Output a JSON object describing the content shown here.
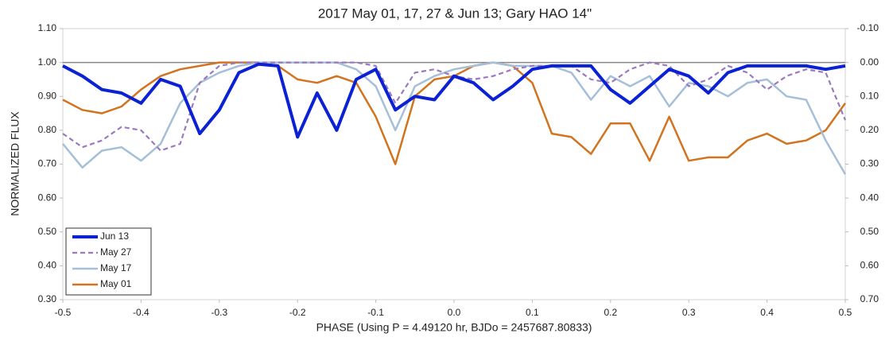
{
  "chart_data": {
    "type": "line",
    "title": "2017 May 01, 17, 27 & Jun 13; Gary HAO 14\"",
    "x_label": "PHASE (Using P = 4.49120 hr, BJDo = 2457687.80833)",
    "y_label": "NORMALIZED FLUX",
    "x": [
      -0.5,
      -0.475,
      -0.45,
      -0.425,
      -0.4,
      -0.375,
      -0.35,
      -0.325,
      -0.3,
      -0.275,
      -0.25,
      -0.225,
      -0.2,
      -0.175,
      -0.15,
      -0.125,
      -0.1,
      -0.075,
      -0.05,
      -0.025,
      0,
      0.025,
      0.05,
      0.075,
      0.1,
      0.125,
      0.15,
      0.175,
      0.2,
      0.225,
      0.25,
      0.275,
      0.3,
      0.325,
      0.35,
      0.375,
      0.4,
      0.425,
      0.45,
      0.475,
      0.5
    ],
    "series": [
      {
        "name": "Jun 13",
        "color": "#0a22d4",
        "width": 4,
        "dash": false,
        "values": [
          0.99,
          0.96,
          0.92,
          0.91,
          0.88,
          0.95,
          0.93,
          0.79,
          0.86,
          0.97,
          0.995,
          0.99,
          0.78,
          0.91,
          0.8,
          0.95,
          0.98,
          0.86,
          0.9,
          0.89,
          0.96,
          0.94,
          0.89,
          0.93,
          0.98,
          0.99,
          0.99,
          0.99,
          0.92,
          0.88,
          0.93,
          0.98,
          0.96,
          0.91,
          0.97,
          0.99,
          0.99,
          0.99,
          0.99,
          0.98,
          0.99
        ]
      },
      {
        "name": "May 27",
        "color": "#9a79be",
        "width": 2.2,
        "dash": true,
        "values": [
          0.79,
          0.75,
          0.77,
          0.81,
          0.8,
          0.74,
          0.76,
          0.94,
          0.99,
          1.0,
          1.0,
          1.0,
          1.0,
          1.0,
          1.0,
          1.0,
          0.99,
          0.88,
          0.97,
          0.98,
          0.96,
          0.95,
          0.96,
          0.98,
          0.99,
          0.99,
          0.99,
          0.95,
          0.94,
          0.98,
          1.0,
          0.99,
          0.93,
          0.95,
          0.99,
          0.97,
          0.92,
          0.96,
          0.98,
          0.97,
          0.83
        ]
      },
      {
        "name": "May 17",
        "color": "#a6bfd8",
        "width": 2.5,
        "dash": false,
        "values": [
          0.76,
          0.69,
          0.74,
          0.75,
          0.71,
          0.76,
          0.88,
          0.94,
          0.97,
          0.99,
          1.0,
          1.0,
          1.0,
          1.0,
          1.0,
          0.98,
          0.93,
          0.8,
          0.93,
          0.96,
          0.98,
          0.99,
          1.0,
          0.99,
          0.99,
          0.99,
          0.97,
          0.89,
          0.96,
          0.93,
          0.96,
          0.87,
          0.94,
          0.93,
          0.9,
          0.94,
          0.95,
          0.9,
          0.89,
          0.77,
          0.67
        ]
      },
      {
        "name": "May 01",
        "color": "#d2741f",
        "width": 2.5,
        "dash": false,
        "values": [
          0.89,
          0.86,
          0.85,
          0.87,
          0.92,
          0.96,
          0.98,
          0.99,
          1.0,
          1.0,
          1.0,
          0.99,
          0.95,
          0.94,
          0.96,
          0.94,
          0.84,
          0.7,
          0.9,
          0.95,
          0.96,
          0.99,
          1.0,
          0.99,
          0.94,
          0.79,
          0.78,
          0.73,
          0.82,
          0.82,
          0.71,
          0.84,
          0.71,
          0.72,
          0.72,
          0.77,
          0.79,
          0.76,
          0.77,
          0.8,
          0.88
        ]
      }
    ],
    "xlim": [
      -0.5,
      0.5
    ],
    "xticks": [
      -0.5,
      -0.4,
      -0.3,
      -0.2,
      -0.1,
      {
        "value": 0,
        "label": "0.0"
      },
      0.1,
      0.2,
      0.3,
      0.4,
      0.5
    ],
    "ylim": [
      0.3,
      1.1
    ],
    "yticks": [
      {
        "value": 0.3,
        "label": "0.30"
      },
      {
        "value": 0.4,
        "label": "0.40"
      },
      {
        "value": 0.5,
        "label": "0.50"
      },
      {
        "value": 0.6,
        "label": "0.60"
      },
      {
        "value": 0.7,
        "label": "0.70"
      },
      {
        "value": 0.8,
        "label": "0.80"
      },
      {
        "value": 0.9,
        "label": "0.90"
      },
      {
        "value": 1.0,
        "label": "1.00"
      },
      {
        "value": 1.1,
        "label": "1.10"
      }
    ],
    "y2lim": [
      0.7,
      -0.1
    ],
    "y2ticks": [
      {
        "value": 0.7,
        "label": "0.70"
      },
      {
        "value": 0.6,
        "label": "0.60"
      },
      {
        "value": 0.5,
        "label": "0.50"
      },
      {
        "value": 0.4,
        "label": "0.40"
      },
      {
        "value": 0.3,
        "label": "0.30"
      },
      {
        "value": 0.2,
        "label": "0.20"
      },
      {
        "value": 0.1,
        "label": "0.10"
      },
      {
        "value": 0,
        "label": "0.00"
      },
      {
        "value": -0.1,
        "label": "-0.10"
      }
    ],
    "reference_line": 1.0,
    "legend": "lower left"
  }
}
